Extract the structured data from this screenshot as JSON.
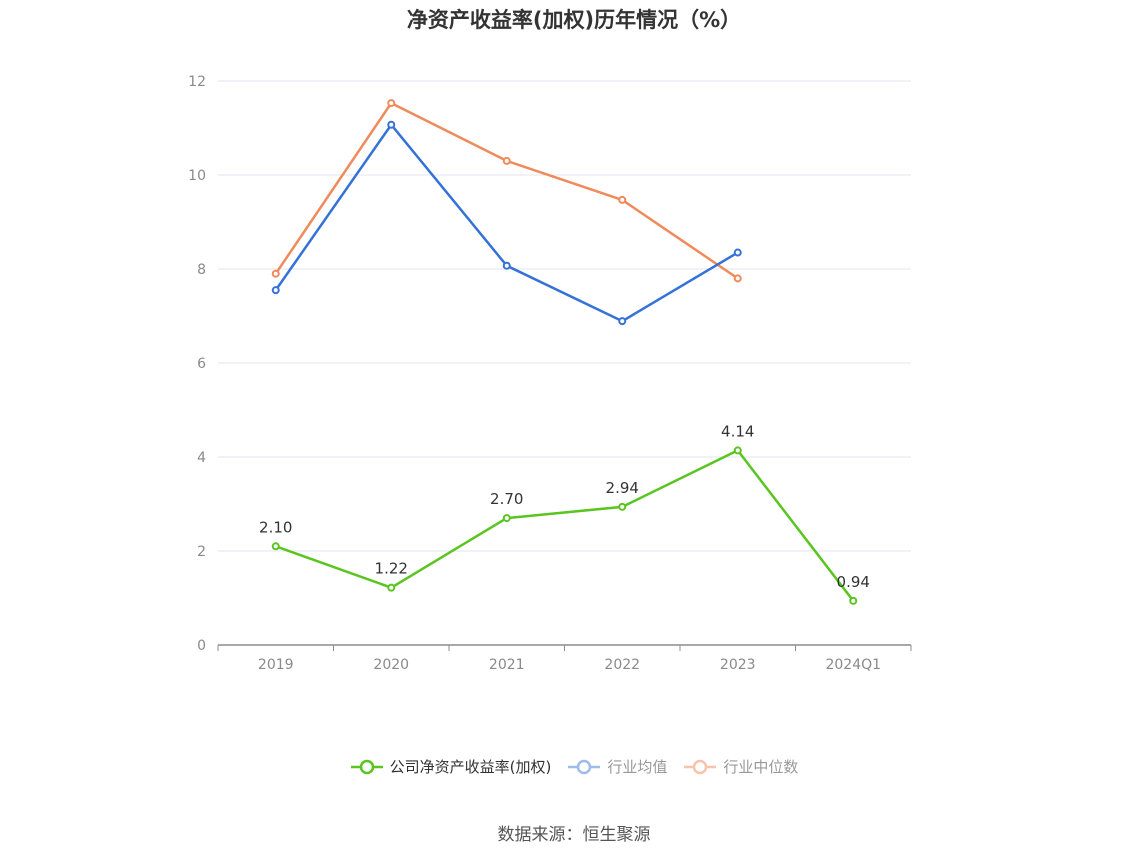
{
  "title": "净资产收益率(加权)历年情况（%）",
  "source_text": "数据来源：恒生聚源",
  "chart_data": {
    "type": "line",
    "title": "净资产收益率(加权)历年情况（%）",
    "xlabel": "",
    "ylabel": "",
    "categories": [
      "2019",
      "2020",
      "2021",
      "2022",
      "2023",
      "2024Q1"
    ],
    "ylim": [
      0,
      12
    ],
    "yticks": [
      0,
      2,
      4,
      6,
      8,
      10,
      12
    ],
    "grid": true,
    "legend_position": "bottom",
    "series": [
      {
        "name": "公司净资产收益率(加权)",
        "color": "#5ac421",
        "values": [
          2.1,
          1.22,
          2.7,
          2.94,
          4.14,
          0.94
        ],
        "labels": [
          "2.10",
          "1.22",
          "2.70",
          "2.94",
          "4.14",
          "0.94"
        ]
      },
      {
        "name": "行业均值",
        "color": "#3572d8",
        "legend_color": "#9dbbed",
        "values": [
          7.55,
          11.07,
          8.07,
          6.89,
          8.35,
          null
        ]
      },
      {
        "name": "行业中位数",
        "color": "#f08a5a",
        "legend_color": "#f7c3ac",
        "values": [
          7.9,
          11.53,
          10.3,
          9.47,
          7.8,
          null
        ]
      }
    ]
  }
}
